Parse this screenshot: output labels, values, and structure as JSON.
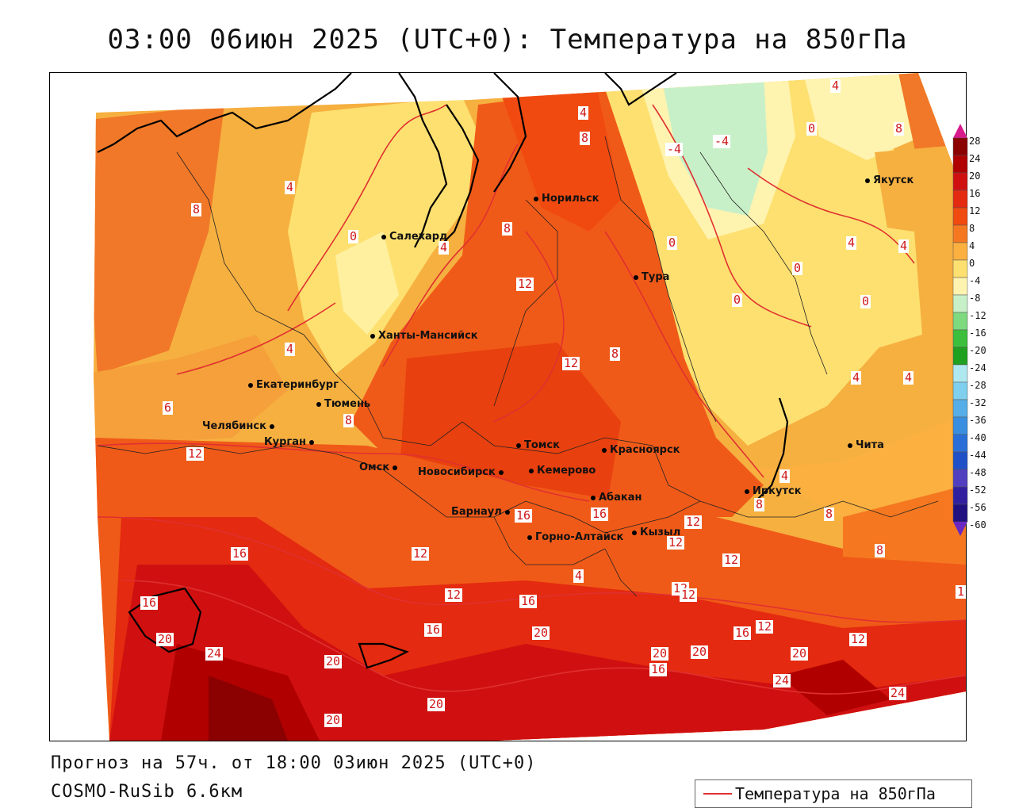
{
  "title": "03:00 06июн 2025 (UTC+0): Температура на 850гПа",
  "footer": {
    "forecast": "Прогноз на 57ч. от 18:00 03июн 2025 (UTC+0)",
    "model": "COSMO-RuSib 6.6км"
  },
  "legend": {
    "label": "Температура на 850гПа",
    "line_color": "#e03030"
  },
  "colorbar": {
    "levels": [
      "28",
      "24",
      "20",
      "16",
      "12",
      "8",
      "4",
      "0",
      "-4",
      "-8",
      "-12",
      "-16",
      "-20",
      "-24",
      "-28",
      "-32",
      "-36",
      "-40",
      "-44",
      "-48",
      "-52",
      "-56",
      "-60"
    ],
    "colors": [
      "#8b0000",
      "#b00000",
      "#d01010",
      "#e42a10",
      "#f04a10",
      "#f57820",
      "#fbb040",
      "#fde070",
      "#fff3b0",
      "#c8f0c8",
      "#7fd97f",
      "#3cbf3c",
      "#1fa01f",
      "#b0e8f0",
      "#7fd0ee",
      "#55aee8",
      "#3a8ee0",
      "#2a6fd8",
      "#2050c8",
      "#5040c0",
      "#3020a0",
      "#201080",
      "#6a28c0"
    ]
  },
  "cities": [
    {
      "name": "Норильск"
    },
    {
      "name": "Салехард"
    },
    {
      "name": "Тура"
    },
    {
      "name": "Якутск"
    },
    {
      "name": "Ханты-Мансийск"
    },
    {
      "name": "Екатеринбург"
    },
    {
      "name": "Тюмень"
    },
    {
      "name": "Челябинск"
    },
    {
      "name": "Курган"
    },
    {
      "name": "Омск"
    },
    {
      "name": "Новосибирск"
    },
    {
      "name": "Томск"
    },
    {
      "name": "Кемерово"
    },
    {
      "name": "Красноярск"
    },
    {
      "name": "Абакан"
    },
    {
      "name": "Барнаул"
    },
    {
      "name": "Горно-Алтайск"
    },
    {
      "name": "Кызыл"
    },
    {
      "name": "Иркутск"
    },
    {
      "name": "Чита"
    }
  ],
  "contour_labels": [
    "4",
    "8",
    "4",
    "0",
    "4",
    "8",
    "4",
    "8",
    "12",
    "8",
    "12",
    "0",
    "-4",
    "-4",
    "0",
    "4",
    "0",
    "8",
    "4",
    "4",
    "0",
    "0",
    "4",
    "4",
    "8",
    "6",
    "12",
    "16",
    "16",
    "12",
    "16",
    "12",
    "16",
    "20",
    "24",
    "20",
    "16",
    "20",
    "20",
    "20",
    "20",
    "16",
    "12",
    "12",
    "12",
    "12",
    "12",
    "20",
    "24",
    "24",
    "8",
    "4",
    "8",
    "8",
    "12",
    "16",
    "16",
    "4",
    "20",
    "12",
    "1"
  ]
}
